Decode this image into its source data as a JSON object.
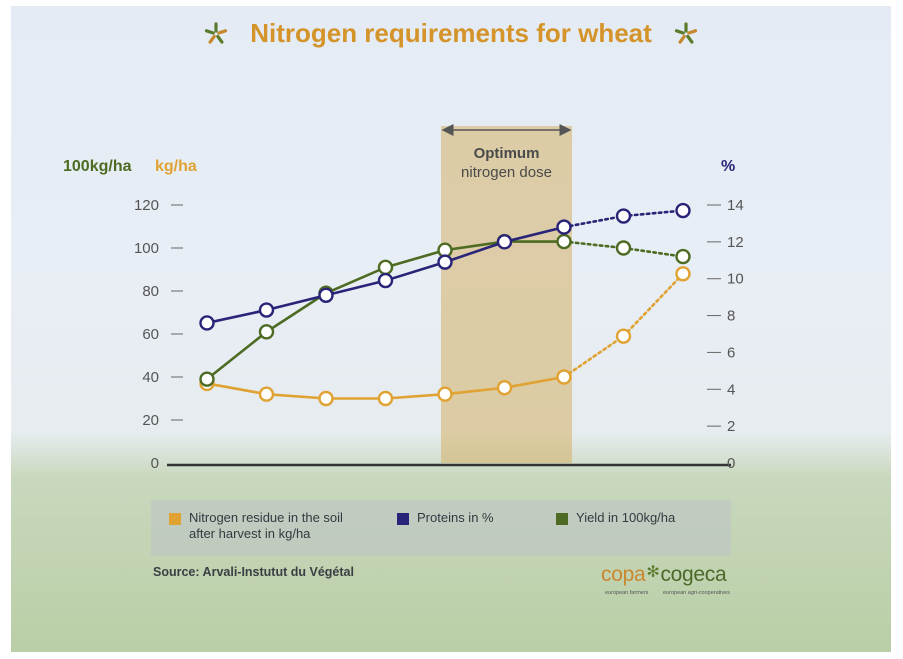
{
  "title": "Nitrogen requirements for wheat",
  "icons": {
    "title_left": "asterisk-flower-icon",
    "title_right": "asterisk-flower-icon",
    "logo": "asterisk-flower-icon"
  },
  "colors": {
    "nitrogen": "#e0a232",
    "proteins": "#2a2478",
    "yield": "#4d6b22",
    "title": "#d4942a",
    "optimum_band": "#d3b166"
  },
  "chart_data": {
    "type": "line",
    "left_axis": {
      "unit_labels": [
        "100kg/ha",
        "kg/ha"
      ],
      "ticks": [
        0,
        20,
        40,
        60,
        80,
        100,
        120
      ],
      "range": [
        0,
        120
      ]
    },
    "right_axis": {
      "unit_label": "%",
      "ticks": [
        0,
        2,
        4,
        6,
        8,
        10,
        12,
        14
      ],
      "range": [
        0,
        14
      ]
    },
    "x": [
      0,
      1,
      2,
      3,
      4,
      5,
      6,
      7,
      8
    ],
    "optimum": {
      "label_line1": "Optimum",
      "label_line2": "nitrogen dose",
      "from_index": 4,
      "to_index": 6
    },
    "series": [
      {
        "name": "Nitrogen residue in the soil after harvest in kg/ha",
        "axis": "left",
        "color": "#e0a232",
        "values": [
          37,
          32,
          30,
          30,
          32,
          35,
          40,
          59,
          88
        ],
        "dotted_from_index": 6
      },
      {
        "name": "Proteins in %",
        "axis": "right",
        "color": "#2a2478",
        "values": [
          7.6,
          8.3,
          9.1,
          9.9,
          10.9,
          12.0,
          12.8,
          13.4,
          13.7
        ],
        "dotted_from_index": 6
      },
      {
        "name": "Yield in 100kg/ha",
        "axis": "left",
        "color": "#4d6b22",
        "values": [
          39,
          61,
          79,
          91,
          99,
          103,
          103,
          100,
          96
        ],
        "dotted_from_index": 6
      }
    ]
  },
  "legend": [
    {
      "line1": "Nitrogen residue in the soil",
      "line2": "after harvest in kg/ha",
      "color": "#e0a232"
    },
    {
      "line1": "Proteins in %",
      "line2": "",
      "color": "#2a2478"
    },
    {
      "line1": "Yield in 100kg/ha",
      "line2": "",
      "color": "#4d6b22"
    }
  ],
  "source": "Source: Arvali-Instutut du Végétal",
  "logo": {
    "left": "copa",
    "right": "cogeca",
    "sub_left": "european farmers",
    "sub_right": "european agri-cooperatives"
  }
}
